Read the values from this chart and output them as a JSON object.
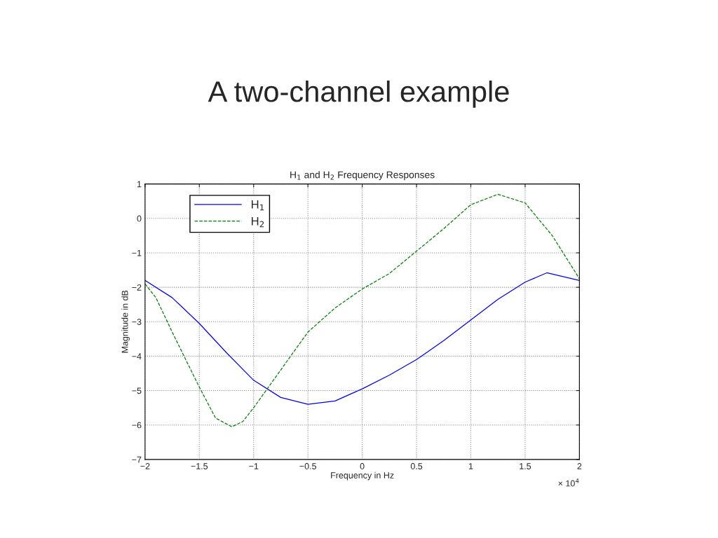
{
  "chart_data": {
    "type": "line",
    "title": "A two-channel example",
    "subtitle": "H$_{1}$ and H$_{2}$ Frequency Responses",
    "xlabel": "Frequency in Hz",
    "ylabel": "Magnitude in dB",
    "annotations": [
      "× 10$^{4}$"
    ],
    "series": [
      {
        "name": "H$_{1}$",
        "color": "#0000ff",
        "line_style": "solid",
        "x": [
          -2,
          -1.75,
          -1.5,
          -1.25,
          -1,
          -0.75,
          -0.5,
          -0.25,
          0,
          0.25,
          0.5,
          0.75,
          1,
          1.25,
          1.5,
          1.7,
          2
        ],
        "values": [
          -1.8,
          -2.3,
          -3.05,
          -3.9,
          -4.7,
          -5.2,
          -5.4,
          -5.3,
          -4.95,
          -4.55,
          -4.1,
          -3.55,
          -2.95,
          -2.35,
          -1.85,
          -1.58,
          -1.8
        ]
      },
      {
        "name": "H$_{2}$",
        "color": "#008000",
        "line_style": "dashed",
        "x": [
          -2,
          -1.9,
          -1.75,
          -1.5,
          -1.35,
          -1.2,
          -1.1,
          -1,
          -0.75,
          -0.5,
          -0.25,
          0,
          0.25,
          0.5,
          0.75,
          1,
          1.25,
          1.5,
          1.75,
          2
        ],
        "values": [
          -1.9,
          -2.3,
          -3.3,
          -4.9,
          -5.8,
          -6.05,
          -5.9,
          -5.5,
          -4.4,
          -3.3,
          -2.6,
          -2.05,
          -1.6,
          -0.95,
          -0.3,
          0.4,
          0.7,
          0.45,
          -0.5,
          -1.75
        ]
      }
    ],
    "xlim": [
      -2,
      2
    ],
    "xticks": [
      {
        "value": -2,
        "label": "−2"
      },
      {
        "value": -1.5,
        "label": "−1.5"
      },
      {
        "value": -1,
        "label": "−1"
      },
      {
        "value": -0.5,
        "label": "−0.5"
      },
      0,
      0.5,
      1,
      1.5,
      2
    ],
    "ylim": [
      -7,
      1
    ],
    "yticks": [
      {
        "value": -7,
        "label": "−7"
      },
      {
        "value": -6,
        "label": "−6"
      },
      {
        "value": -5,
        "label": "−5"
      },
      {
        "value": -4,
        "label": "−4"
      },
      {
        "value": -3,
        "label": "−3"
      },
      {
        "value": -2,
        "label": "−2"
      },
      {
        "value": -1,
        "label": "−1"
      },
      0,
      1
    ],
    "grid": true,
    "legend": "top left"
  }
}
